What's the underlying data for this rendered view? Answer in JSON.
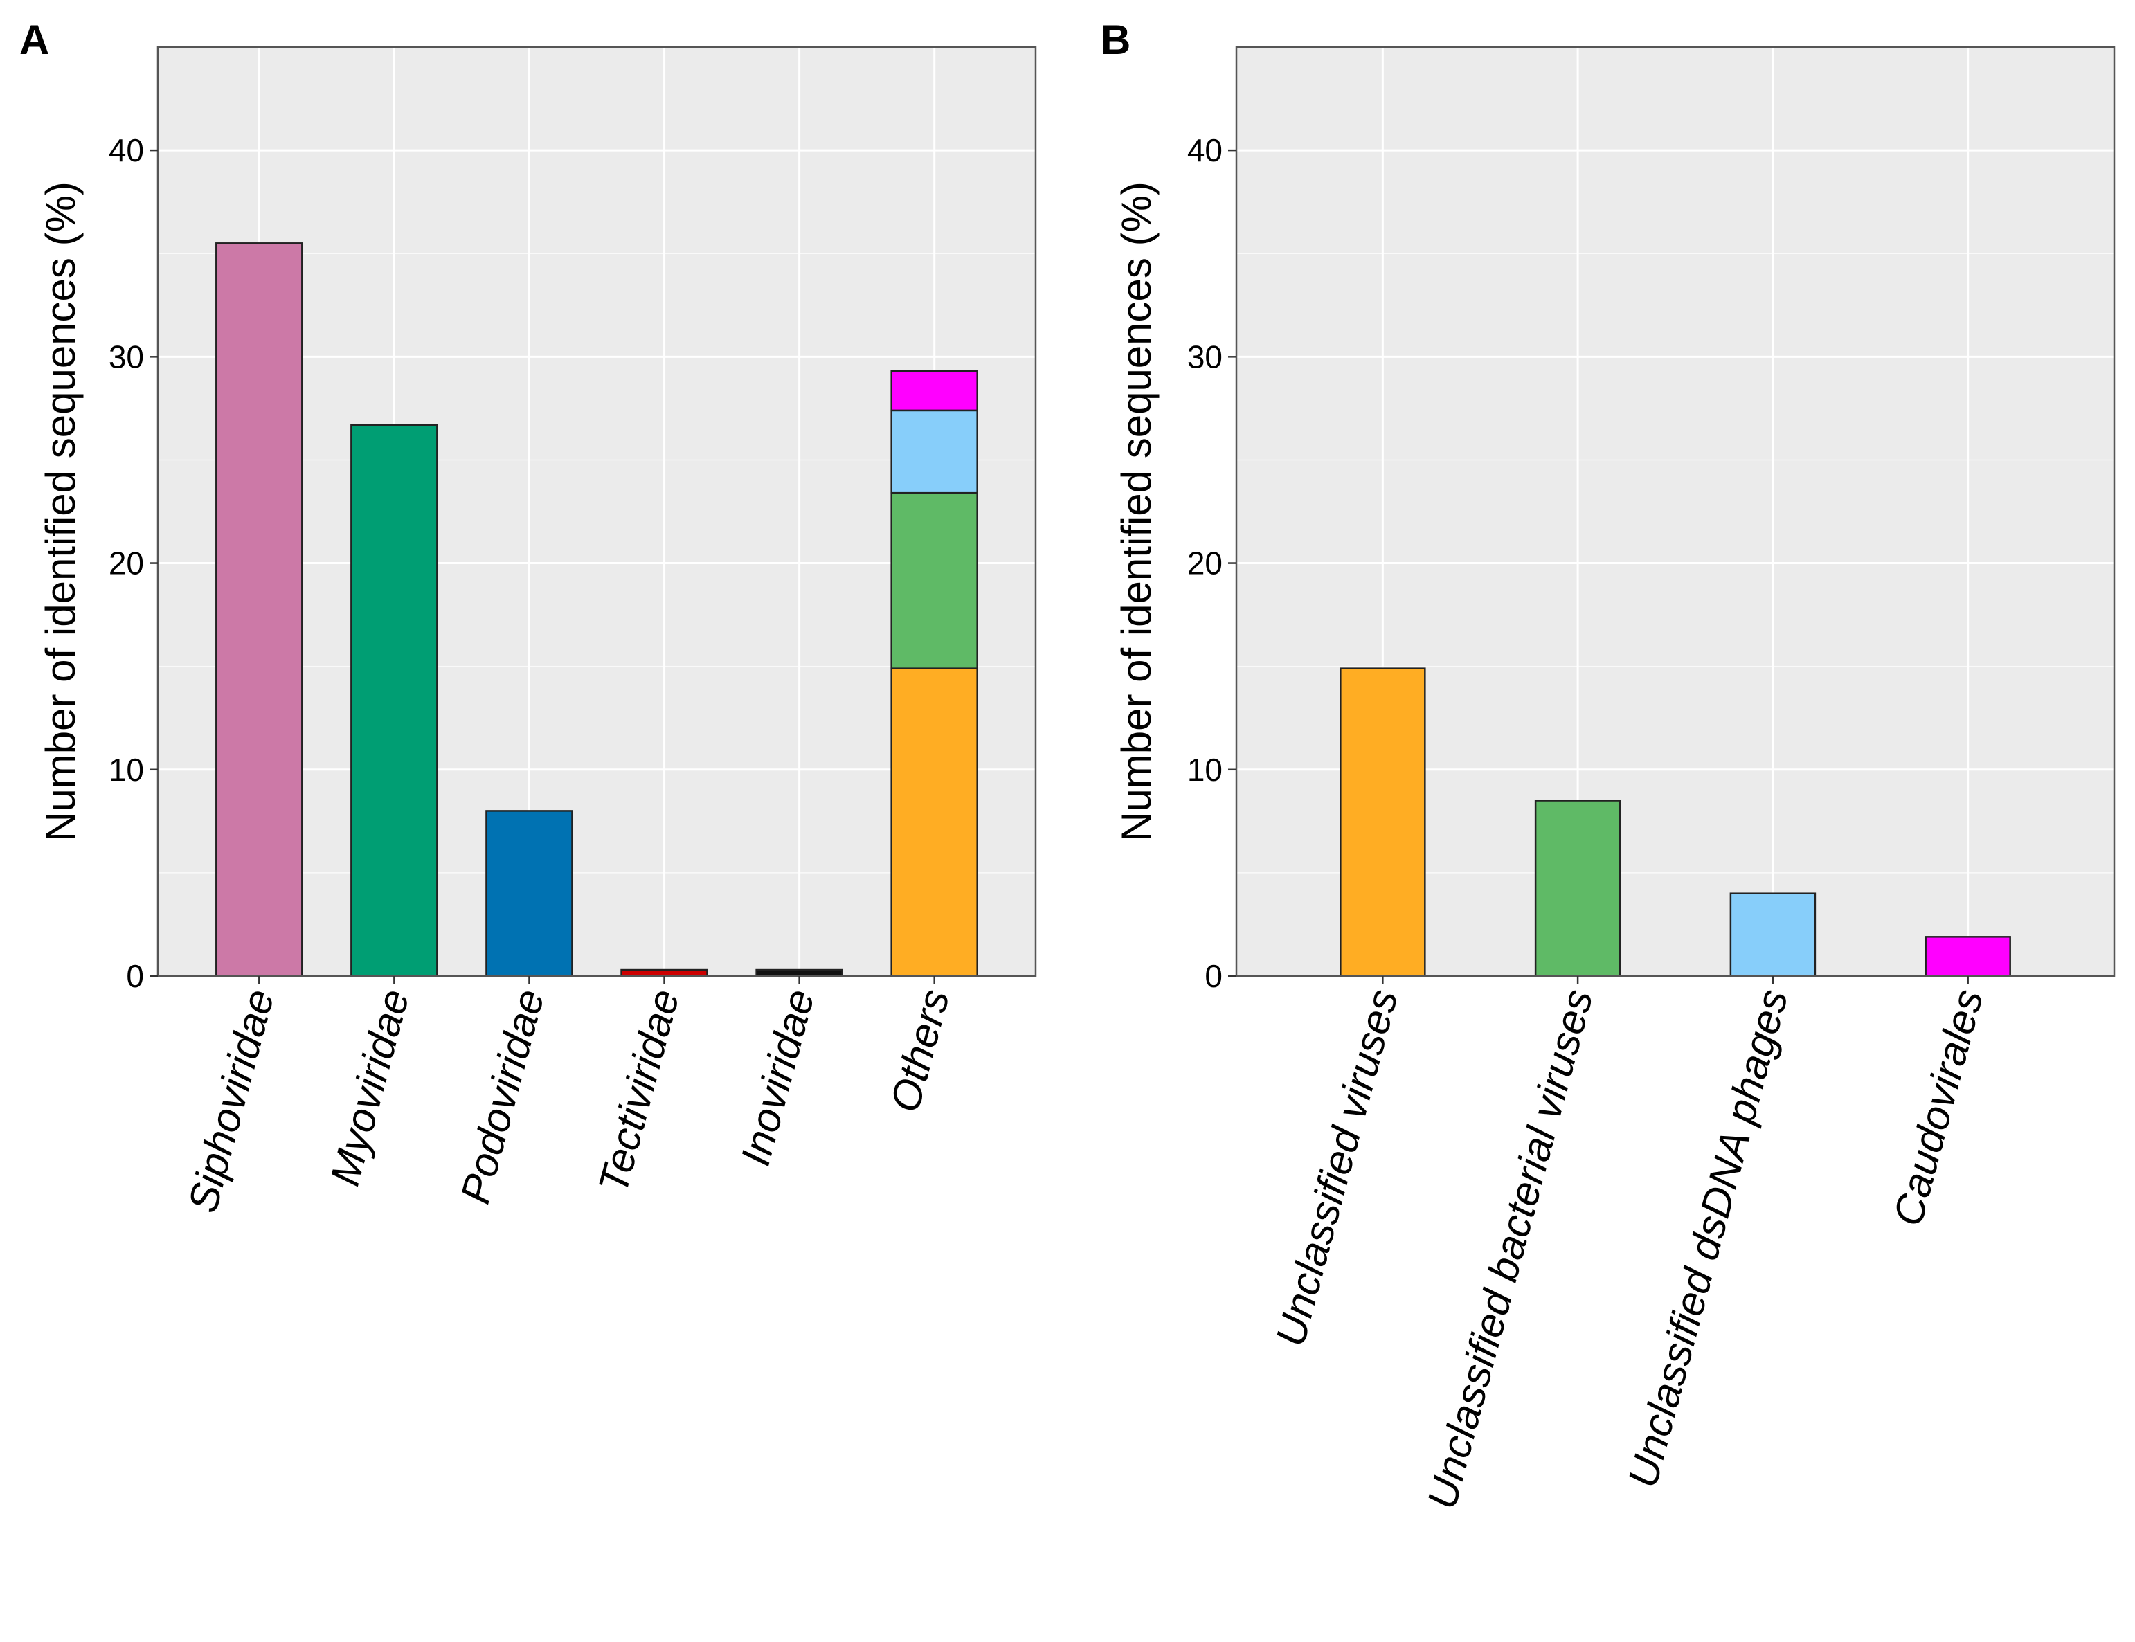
{
  "chart_data": [
    {
      "panel": "A",
      "type": "bar",
      "stacked": true,
      "ylabel": "Number of identified sequences (%)",
      "xlabel": "",
      "ylim": [
        0,
        45
      ],
      "yticks": [
        0,
        10,
        20,
        30,
        40
      ],
      "grid": true,
      "categories": [
        "Siphoviridae",
        "Myoviridae",
        "Podoviridae",
        "Tectiviridae",
        "Inoviridae",
        "Others"
      ],
      "bars": [
        {
          "category": "Siphoviridae",
          "segments": [
            {
              "value": 35.5,
              "color": "#cc79a7"
            }
          ]
        },
        {
          "category": "Myoviridae",
          "segments": [
            {
              "value": 26.7,
              "color": "#009e73"
            }
          ]
        },
        {
          "category": "Podoviridae",
          "segments": [
            {
              "value": 8.0,
              "color": "#0072b2"
            }
          ]
        },
        {
          "category": "Tectiviridae",
          "segments": [
            {
              "value": 0.3,
              "color": "#cc0000"
            }
          ]
        },
        {
          "category": "Inoviridae",
          "segments": [
            {
              "value": 0.3,
              "color": "#111111"
            }
          ]
        },
        {
          "category": "Others",
          "segments": [
            {
              "name": "Unclassified viruses",
              "value": 14.9,
              "color": "#ffad23"
            },
            {
              "name": "Unclassified bacterial viruses",
              "value": 8.5,
              "color": "#5fba66"
            },
            {
              "name": "Unclassified dsDNA phages",
              "value": 4.0,
              "color": "#87cefa"
            },
            {
              "name": "Caudovirales",
              "value": 1.9,
              "color": "#ff00ff"
            }
          ]
        }
      ]
    },
    {
      "panel": "B",
      "type": "bar",
      "stacked": false,
      "ylabel": "Number of identified sequences (%)",
      "xlabel": "",
      "ylim": [
        0,
        45
      ],
      "yticks": [
        0,
        10,
        20,
        30,
        40
      ],
      "grid": true,
      "categories": [
        "Unclassified viruses",
        "Unclassified bacterial viruses",
        "Unclassified dsDNA phages",
        "Caudovirales"
      ],
      "bars": [
        {
          "category": "Unclassified viruses",
          "segments": [
            {
              "value": 14.9,
              "color": "#ffad23"
            }
          ]
        },
        {
          "category": "Unclassified bacterial viruses",
          "segments": [
            {
              "value": 8.5,
              "color": "#5fba66"
            }
          ]
        },
        {
          "category": "Unclassified dsDNA phages",
          "segments": [
            {
              "value": 4.0,
              "color": "#87cefa"
            }
          ]
        },
        {
          "category": "Caudovirales",
          "segments": [
            {
              "value": 1.9,
              "color": "#ff00ff"
            }
          ]
        }
      ]
    }
  ],
  "colors": {
    "panel_background": "#ebebeb",
    "grid": "#ffffff",
    "bar_outline": "#222222"
  }
}
